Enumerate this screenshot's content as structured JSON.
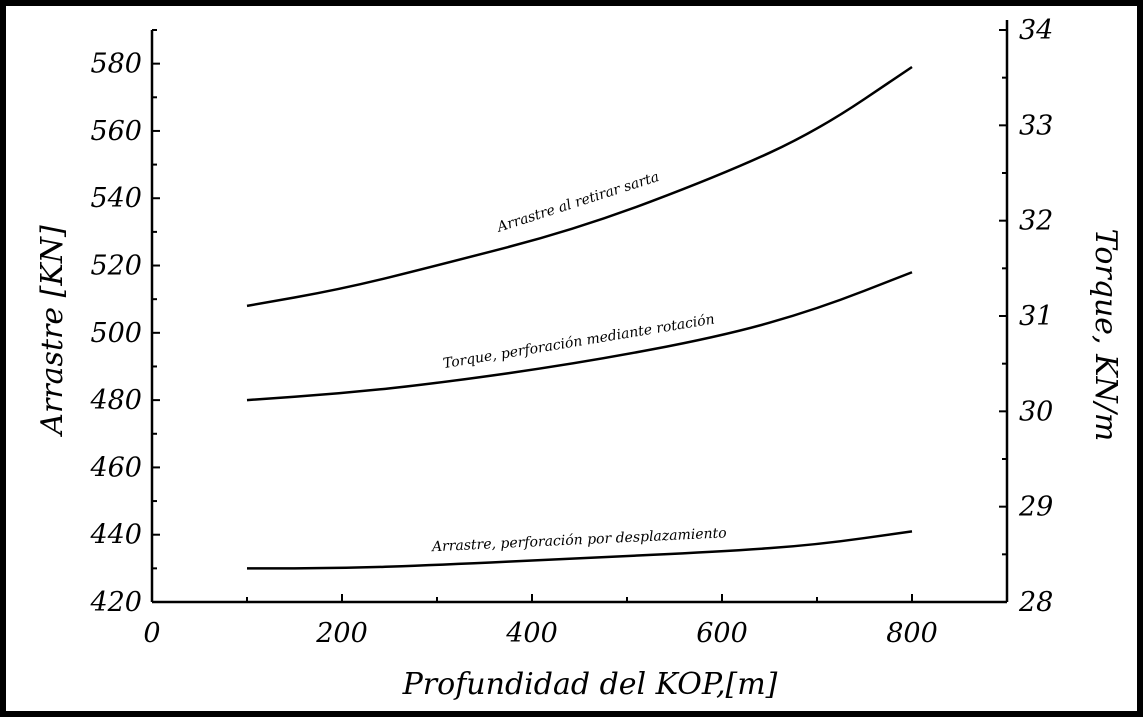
{
  "chart_data": {
    "type": "line",
    "title": "",
    "xlabel": "Profundidad del KOP,[m]",
    "ylabel_left": "Arrastre [KN]",
    "ylabel_right": "Torque, KN/m",
    "xlim": [
      0,
      900
    ],
    "ylim_left": [
      420,
      590
    ],
    "ylim_right": [
      28,
      34
    ],
    "x_ticks": [
      0,
      200,
      400,
      600,
      800
    ],
    "y_left_ticks": [
      420,
      440,
      460,
      480,
      500,
      520,
      540,
      560,
      580
    ],
    "y_right_ticks": [
      28,
      29,
      30,
      31,
      32,
      33,
      34
    ],
    "grid": false,
    "legend": "none",
    "series": [
      {
        "name": "Arrastre al retirar sarta",
        "axis": "left",
        "x": [
          100,
          200,
          300,
          450,
          600,
          700,
          800
        ],
        "y": [
          508,
          513,
          520,
          531,
          547,
          560,
          579
        ]
      },
      {
        "name": "Torque, perforación mediante rotación",
        "axis": "left",
        "x": [
          100,
          200,
          300,
          450,
          600,
          700,
          800
        ],
        "y": [
          480,
          482,
          485,
          491,
          499,
          507,
          518
        ]
      },
      {
        "name": "Arrastre, perforación por desplazamiento",
        "axis": "left",
        "x": [
          100,
          200,
          300,
          450,
          600,
          700,
          800
        ],
        "y": [
          430,
          430,
          431,
          433,
          435,
          437,
          441
        ]
      }
    ]
  }
}
